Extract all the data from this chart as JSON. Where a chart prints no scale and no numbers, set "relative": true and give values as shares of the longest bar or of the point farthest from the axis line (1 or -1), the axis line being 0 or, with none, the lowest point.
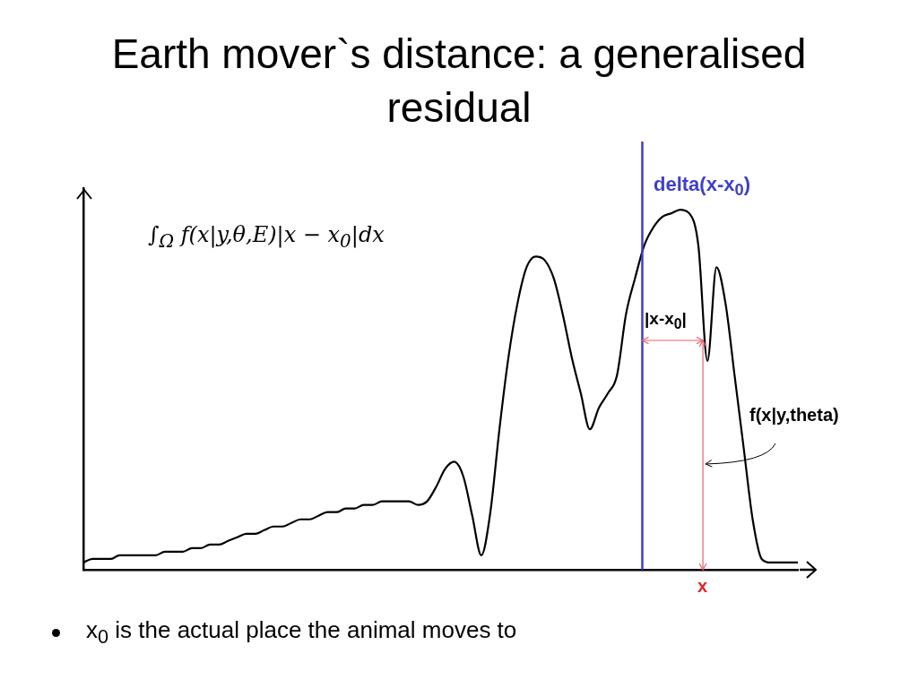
{
  "chart_data": {
    "type": "line",
    "title": "Earth mover`s distance: a generalised residual",
    "relative": true,
    "categories": [
      null,
      null,
      null,
      null,
      null,
      null,
      null,
      null,
      null,
      null,
      null,
      null,
      null,
      null,
      null,
      null,
      null,
      null,
      null,
      null,
      null,
      null,
      null,
      null,
      null,
      null,
      null,
      null,
      null,
      null,
      null,
      null,
      null,
      null,
      null,
      null,
      null,
      null,
      null,
      null,
      null,
      null,
      null,
      null,
      null,
      null,
      null,
      null,
      null,
      null,
      null,
      null,
      null,
      null,
      null,
      null,
      null,
      null,
      null,
      null,
      null,
      null,
      null,
      null,
      null,
      null,
      null,
      null,
      null,
      null,
      null,
      null,
      null,
      null,
      null,
      null,
      null,
      null,
      null,
      null
    ],
    "series": [
      {
        "color": "#000000",
        "values": [
          0.02,
          0.03,
          0.03,
          0.03,
          0.04,
          0.04,
          0.04,
          0.04,
          0.04,
          0.05,
          0.05,
          0.05,
          0.06,
          0.06,
          0.07,
          0.07,
          0.08,
          0.09,
          0.1,
          0.1,
          0.11,
          0.12,
          0.12,
          0.13,
          0.14,
          0.14,
          0.15,
          0.16,
          0.16,
          0.17,
          0.17,
          0.18,
          0.18,
          0.19,
          0.19,
          0.19,
          0.19,
          0.18,
          0.19,
          0.23,
          0.28,
          0.3,
          0.26,
          0.15,
          0.04,
          0.16,
          0.39,
          0.59,
          0.74,
          0.84,
          0.87,
          0.86,
          0.81,
          0.71,
          0.59,
          0.49,
          0.39,
          0.45,
          0.49,
          0.54,
          0.71,
          0.81,
          0.9,
          0.95,
          0.98,
          0.99,
          1,
          0.99,
          0.9,
          0.58,
          0.84,
          0.74,
          0.54,
          0.34,
          0.14,
          0.03,
          0.02,
          0.02,
          0.02,
          0.02
        ]
      }
    ],
    "annotations": [
      "∫$_{Ω}$ f(x|y,θ,E)|x − x$_{0}$|dx",
      "|x-x$_{0}$|",
      "f(x|y,theta)",
      "x$_{0}$ is the actual place the animal moves to",
      "delta(x-x$_{0}$)",
      "x"
    ]
  }
}
